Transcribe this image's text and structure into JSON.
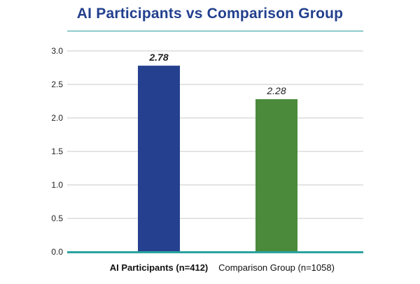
{
  "colors": {
    "title": "#23408e",
    "rule": "#2a9d9a",
    "grid": "#c8c8c8",
    "baseline": "#2aa39f"
  },
  "chart_data": {
    "type": "bar",
    "title": "AI Participants vs Comparison Group",
    "xlabel": "",
    "ylabel": "",
    "ylim": [
      0,
      3.0
    ],
    "yticks": [
      "0.0",
      "0.5",
      "1.0",
      "1.5",
      "2.0",
      "2.5",
      "3.0"
    ],
    "grid": true,
    "categories": [
      "AI Participants (n=412)",
      "Comparison Group (n=1058)"
    ],
    "values": [
      2.78,
      2.28
    ],
    "value_labels": [
      "2.78",
      "2.28"
    ],
    "bar_colors": [
      "#25408f",
      "#4a8a3a"
    ]
  }
}
